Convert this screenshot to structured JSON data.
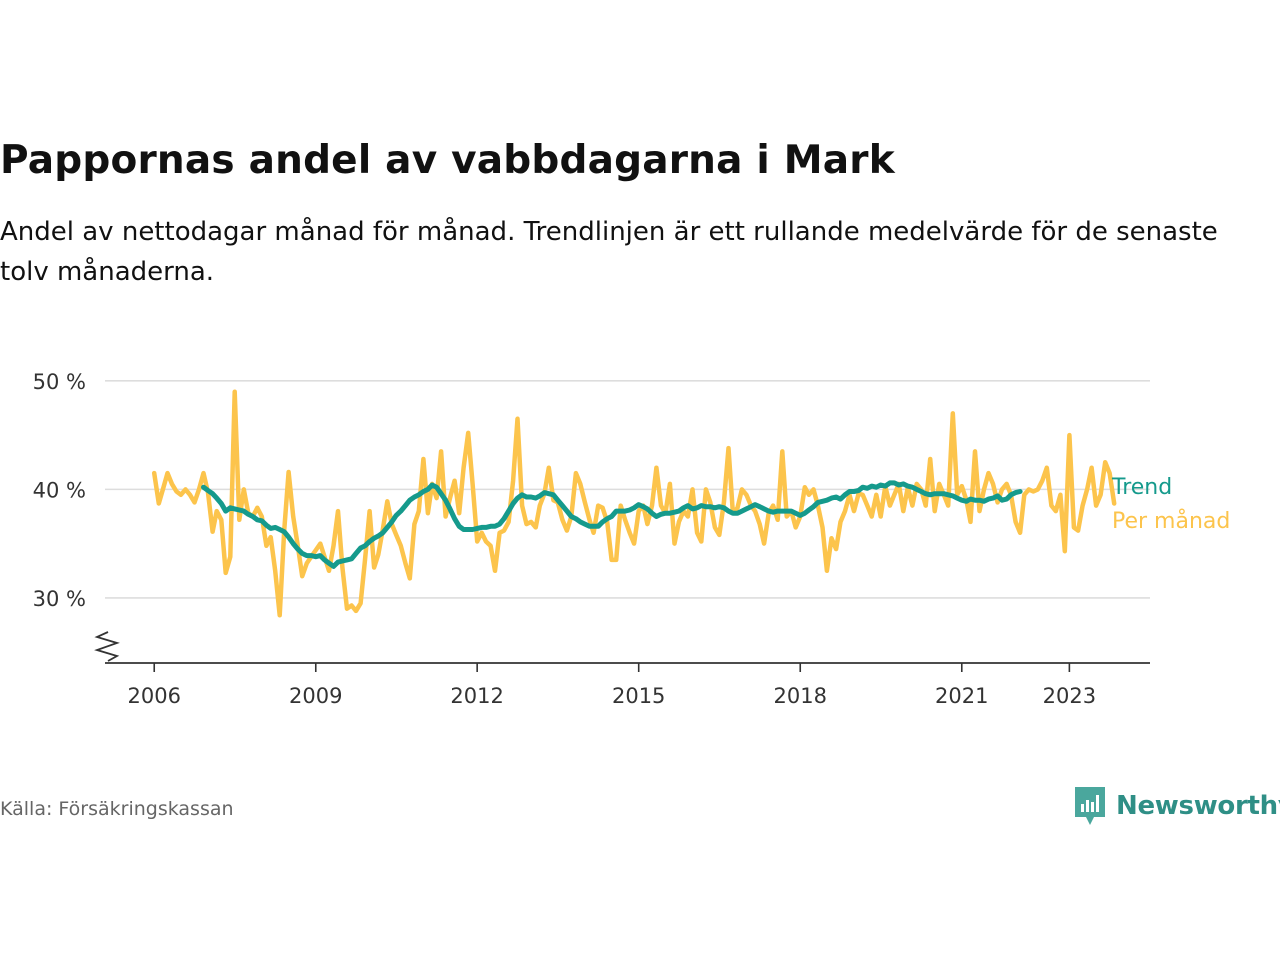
{
  "header": {
    "title": "Pappornas andel av vabbdagarna i Mark",
    "subtitle": "Andel av nettodagar månad för månad. Trendlinjen är ett rullande medelvärde för de senaste tolv månaderna."
  },
  "footer": {
    "source": "Källa: Försäkringskassan",
    "brand": "Newsworthy"
  },
  "colors": {
    "monthly": "#fcc44c",
    "trend": "#159a8c",
    "grid": "#dddddd",
    "axis": "#333333",
    "brand": "#2f8f86"
  },
  "chart_data": {
    "type": "line",
    "title": "Pappornas andel av vabbdagarna i Mark",
    "xlabel": "",
    "ylabel": "",
    "y_unit": "%",
    "ylim": [
      24,
      51
    ],
    "y_ticks": [
      {
        "value": 30,
        "label": "30 %"
      },
      {
        "value": 40,
        "label": "40 %"
      },
      {
        "value": 50,
        "label": "50 %"
      }
    ],
    "x_range": [
      "2005-02-01",
      "2024-07-01"
    ],
    "x_ticks": [
      {
        "date": "2006-01-01",
        "label": "2006"
      },
      {
        "date": "2009-01-01",
        "label": "2009"
      },
      {
        "date": "2012-01-01",
        "label": "2012"
      },
      {
        "date": "2015-01-01",
        "label": "2015"
      },
      {
        "date": "2018-01-01",
        "label": "2018"
      },
      {
        "date": "2021-01-01",
        "label": "2021"
      },
      {
        "date": "2023-01-01",
        "label": "2023"
      }
    ],
    "grid": "horizontal",
    "axis_break": true,
    "legend": "inline-right",
    "series": [
      {
        "name": "Per månad",
        "start": "2006-01",
        "values": [
          41.5,
          38.7,
          40.0,
          41.5,
          40.5,
          39.8,
          39.5,
          40.0,
          39.5,
          38.8,
          40.0,
          41.5,
          39.7,
          36.1,
          38.0,
          37.2,
          32.3,
          33.8,
          49.0,
          37.2,
          40.0,
          37.8,
          37.5,
          38.3,
          37.5,
          34.8,
          35.6,
          32.5,
          28.4,
          36.2,
          41.6,
          37.5,
          34.8,
          32.0,
          33.2,
          33.8,
          34.4,
          35.0,
          33.8,
          32.5,
          34.8,
          38.0,
          32.8,
          29.0,
          29.3,
          28.8,
          29.5,
          33.5,
          38.0,
          32.8,
          34.0,
          36.3,
          38.9,
          36.8,
          35.8,
          34.8,
          33.2,
          31.8,
          36.8,
          38.0,
          42.8,
          37.8,
          40.5,
          39.2,
          43.5,
          37.5,
          39.2,
          40.8,
          37.8,
          42.0,
          45.2,
          40.5,
          35.2,
          36.0,
          35.2,
          34.8,
          32.5,
          36.0,
          36.2,
          37.0,
          40.8,
          46.5,
          38.5,
          36.8,
          37.0,
          36.5,
          38.5,
          39.6,
          42.0,
          39.0,
          38.8,
          37.2,
          36.2,
          37.5,
          41.5,
          40.5,
          38.8,
          37.2,
          36.0,
          38.5,
          38.3,
          37.0,
          33.5,
          33.5,
          38.5,
          37.2,
          36.0,
          35.0,
          38.0,
          38.5,
          36.8,
          38.5,
          42.0,
          38.5,
          37.8,
          40.5,
          35.0,
          37.0,
          38.0,
          37.5,
          40.0,
          36.0,
          35.2,
          40.0,
          38.8,
          36.5,
          35.8,
          38.8,
          43.8,
          37.8,
          38.3,
          40.0,
          39.5,
          38.5,
          38.0,
          36.8,
          35.0,
          37.8,
          38.5,
          37.2,
          43.5,
          37.5,
          38.0,
          36.5,
          37.5,
          40.2,
          39.5,
          40.0,
          38.5,
          36.5,
          32.5,
          35.5,
          34.5,
          37.0,
          38.0,
          39.5,
          38.0,
          39.6,
          39.5,
          38.5,
          37.5,
          39.5,
          37.5,
          40.3,
          38.5,
          39.5,
          40.5,
          38.0,
          40.2,
          38.5,
          40.5,
          40.0,
          38.5,
          42.8,
          38.0,
          40.5,
          39.5,
          38.5,
          47.0,
          39.5,
          40.3,
          39.0,
          37.0,
          43.5,
          38.0,
          40.0,
          41.5,
          40.5,
          38.8,
          40.0,
          40.5,
          39.5,
          37.0,
          36.0,
          39.5,
          40.0,
          39.8,
          40.0,
          40.8,
          42.0,
          38.5,
          38.0,
          39.5,
          34.3,
          45.0,
          36.5,
          36.2,
          38.5,
          40.0,
          42.0,
          38.5,
          39.5,
          42.5,
          41.5,
          38.7
        ]
      },
      {
        "name": "Trend",
        "start": "2006-12",
        "values": [
          40.2,
          39.9,
          39.6,
          39.2,
          38.7,
          38.0,
          38.3,
          38.2,
          38.1,
          38.0,
          37.7,
          37.5,
          37.2,
          37.1,
          36.7,
          36.4,
          36.5,
          36.3,
          36.1,
          35.6,
          35.0,
          34.5,
          34.1,
          33.9,
          33.9,
          33.8,
          33.9,
          33.5,
          33.2,
          32.9,
          33.3,
          33.4,
          33.5,
          33.6,
          34.1,
          34.6,
          34.8,
          35.2,
          35.5,
          35.7,
          36.0,
          36.5,
          37.0,
          37.6,
          38.0,
          38.5,
          39.0,
          39.3,
          39.5,
          39.8,
          40.0,
          40.4,
          40.2,
          39.6,
          39.0,
          38.2,
          37.3,
          36.6,
          36.3,
          36.3,
          36.3,
          36.4,
          36.5,
          36.5,
          36.6,
          36.6,
          36.8,
          37.3,
          38.0,
          38.7,
          39.2,
          39.5,
          39.3,
          39.3,
          39.2,
          39.4,
          39.7,
          39.6,
          39.5,
          39.0,
          38.5,
          38.0,
          37.5,
          37.3,
          37.0,
          36.8,
          36.6,
          36.6,
          36.6,
          37.0,
          37.3,
          37.5,
          38.0,
          38.0,
          38.0,
          38.1,
          38.3,
          38.6,
          38.4,
          38.2,
          37.8,
          37.5,
          37.7,
          37.8,
          37.8,
          37.9,
          38.0,
          38.3,
          38.5,
          38.2,
          38.3,
          38.5,
          38.4,
          38.4,
          38.3,
          38.4,
          38.3,
          38.0,
          37.8,
          37.8,
          38.0,
          38.2,
          38.4,
          38.6,
          38.4,
          38.2,
          38.0,
          37.9,
          38.0,
          38.0,
          38.0,
          38.0,
          37.8,
          37.6,
          37.8,
          38.1,
          38.4,
          38.8,
          38.9,
          39.0,
          39.2,
          39.3,
          39.1,
          39.5,
          39.8,
          39.8,
          39.9,
          40.2,
          40.1,
          40.3,
          40.2,
          40.4,
          40.3,
          40.6,
          40.6,
          40.4,
          40.5,
          40.3,
          40.2,
          40.0,
          39.8,
          39.6,
          39.5,
          39.6,
          39.6,
          39.6,
          39.5,
          39.4,
          39.2,
          39.0,
          38.9,
          39.1,
          39.0,
          39.0,
          38.9,
          39.1,
          39.2,
          39.4,
          39.0,
          39.1,
          39.5,
          39.7,
          39.8
        ]
      }
    ]
  }
}
